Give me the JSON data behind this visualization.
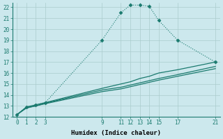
{
  "xlabel": "Humidex (Indice chaleur)",
  "bg_color": "#cce8ed",
  "grid_color": "#aacccc",
  "line_color": "#1a7a6e",
  "xlim": [
    -0.5,
    21.5
  ],
  "ylim": [
    12,
    22.4
  ],
  "xticks": [
    0,
    1,
    2,
    3,
    9,
    11,
    12,
    13,
    14,
    15,
    17,
    21
  ],
  "yticks": [
    12,
    13,
    14,
    15,
    16,
    17,
    18,
    19,
    20,
    21,
    22
  ],
  "lines": [
    {
      "x": [
        0,
        1,
        2,
        3,
        9,
        11,
        12,
        13,
        14,
        15,
        17,
        21
      ],
      "y": [
        12.2,
        12.9,
        13.1,
        13.3,
        19.0,
        21.5,
        22.2,
        22.2,
        22.1,
        20.8,
        19.0,
        17.0
      ],
      "marker": true,
      "dotted": true
    },
    {
      "x": [
        0,
        1,
        2,
        3,
        9,
        11,
        12,
        13,
        14,
        15,
        17,
        21
      ],
      "y": [
        12.2,
        12.9,
        13.1,
        13.3,
        14.6,
        15.0,
        15.2,
        15.5,
        15.7,
        16.0,
        16.3,
        17.0
      ],
      "marker": false,
      "dotted": false
    },
    {
      "x": [
        0,
        1,
        2,
        3,
        9,
        11,
        12,
        13,
        14,
        15,
        17,
        21
      ],
      "y": [
        12.2,
        12.85,
        13.0,
        13.25,
        14.45,
        14.7,
        14.9,
        15.1,
        15.3,
        15.5,
        15.85,
        16.6
      ],
      "marker": false,
      "dotted": false
    },
    {
      "x": [
        0,
        1,
        2,
        3,
        9,
        11,
        12,
        13,
        14,
        15,
        17,
        21
      ],
      "y": [
        12.2,
        12.8,
        13.0,
        13.2,
        14.3,
        14.55,
        14.75,
        14.95,
        15.15,
        15.35,
        15.7,
        16.4
      ],
      "marker": false,
      "dotted": false
    }
  ]
}
